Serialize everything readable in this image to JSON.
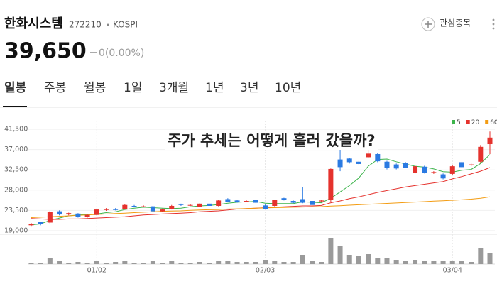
{
  "header": {
    "name": "한화시스템",
    "code": "272210",
    "market": "KOSPI",
    "watch": "관심종목",
    "price": "39,650",
    "change": "0(0.00%)"
  },
  "tabs": [
    "일봉",
    "주봉",
    "월봉",
    "1일",
    "3개월",
    "1년",
    "3년",
    "10년"
  ],
  "chart_data": {
    "type": "candlestick",
    "annotation": "주가 추세는 어떻게 흘러 갔을까?",
    "categories": [
      null,
      null,
      null,
      null,
      null,
      null,
      null,
      "01/02",
      null,
      null,
      null,
      null,
      null,
      null,
      null,
      null,
      null,
      null,
      null,
      null,
      null,
      null,
      null,
      null,
      null,
      "02/03",
      null,
      null,
      null,
      null,
      null,
      null,
      null,
      null,
      null,
      null,
      null,
      null,
      null,
      null,
      null,
      null,
      null,
      null,
      null,
      "03/04",
      null,
      null,
      null,
      null
    ],
    "open": [
      20200,
      20900,
      20800,
      23300,
      22600,
      22800,
      22000,
      22500,
      23600,
      23800,
      23800,
      24500,
      24300,
      24400,
      23300,
      23800,
      24900,
      24600,
      24300,
      25000,
      24500,
      26000,
      25700,
      25400,
      25800,
      24600,
      24500,
      26200,
      25600,
      26000,
      25600,
      25500,
      25800,
      34800,
      35000,
      34300,
      35300,
      36000,
      34300,
      33700,
      34100,
      31800,
      33200,
      31800,
      31500,
      31600,
      34200,
      33500,
      34300,
      38200
    ],
    "high": [
      20700,
      21000,
      23400,
      23500,
      23000,
      22900,
      22700,
      23900,
      24000,
      24000,
      24900,
      24700,
      24600,
      24500,
      23900,
      24700,
      25000,
      24900,
      25100,
      25100,
      25900,
      26200,
      25800,
      25700,
      25900,
      24800,
      25900,
      26300,
      25700,
      28600,
      25700,
      25800,
      32800,
      37000,
      35200,
      34500,
      36900,
      36200,
      34500,
      33900,
      34200,
      33500,
      33400,
      32200,
      31700,
      33500,
      34300,
      33900,
      38000,
      41000
    ],
    "low": [
      19900,
      20200,
      20600,
      22400,
      22400,
      21900,
      21900,
      22400,
      23400,
      23500,
      23700,
      24200,
      24200,
      23200,
      23200,
      23700,
      24500,
      24500,
      24200,
      24400,
      24400,
      25300,
      25200,
      25300,
      25100,
      23700,
      24400,
      25700,
      25100,
      25100,
      24600,
      25400,
      25400,
      32200,
      33900,
      33600,
      35100,
      34200,
      32600,
      32600,
      32900,
      31600,
      31700,
      31600,
      30400,
      31400,
      32900,
      33300,
      34100,
      36000
    ],
    "close": [
      20500,
      20500,
      23200,
      22600,
      22900,
      22000,
      22500,
      23700,
      23800,
      23600,
      24700,
      24300,
      24400,
      23300,
      23700,
      24500,
      24700,
      24700,
      25000,
      24500,
      25700,
      25400,
      25300,
      25600,
      25200,
      23800,
      25800,
      25800,
      25200,
      25200,
      24700,
      25700,
      32700,
      33100,
      34200,
      33800,
      36100,
      34400,
      32900,
      32800,
      33000,
      33300,
      31900,
      32000,
      30600,
      33300,
      33100,
      33700,
      37600,
      39650
    ],
    "up_color": "#e5322d",
    "down_color": "#2a7ae2",
    "series": [
      {
        "name": "5",
        "color": "#3cb44b",
        "values": [
          20300,
          20500,
          21300,
          21800,
          22300,
          22500,
          22600,
          22700,
          23000,
          23200,
          23700,
          24000,
          24200,
          24100,
          24000,
          23900,
          24000,
          24300,
          24500,
          24600,
          24800,
          25100,
          25300,
          25400,
          25500,
          25100,
          25000,
          25000,
          25000,
          25400,
          25300,
          25200,
          26200,
          27600,
          29000,
          30700,
          33300,
          34800,
          34900,
          34300,
          33800,
          33300,
          33100,
          32700,
          32100,
          32000,
          32400,
          32600,
          33900,
          35900
        ]
      },
      {
        "name": "20",
        "color": "#e5322d",
        "values": [
          21700,
          21600,
          21500,
          21500,
          21600,
          21600,
          21700,
          21800,
          21900,
          22000,
          22100,
          22300,
          22500,
          22600,
          22700,
          22800,
          22900,
          23000,
          23200,
          23300,
          23400,
          23600,
          23800,
          23900,
          24000,
          24100,
          24200,
          24300,
          24400,
          24500,
          24500,
          24600,
          25200,
          25600,
          26100,
          26500,
          27000,
          27500,
          27900,
          28300,
          28700,
          29000,
          29300,
          29600,
          29900,
          30500,
          31000,
          31600,
          32200,
          33000
        ]
      },
      {
        "name": "60",
        "color": "#f39c12",
        "values": [
          21900,
          22000,
          22100,
          22200,
          22300,
          22400,
          22500,
          22600,
          22700,
          22800,
          22900,
          23000,
          23100,
          23200,
          23300,
          23350,
          23400,
          23500,
          23600,
          23650,
          23700,
          23800,
          23850,
          23900,
          24000,
          24050,
          24100,
          24150,
          24200,
          24250,
          24300,
          24350,
          24450,
          24550,
          24650,
          24750,
          24850,
          24950,
          25050,
          25150,
          25250,
          25350,
          25450,
          25550,
          25650,
          25750,
          25850,
          26000,
          26200,
          26500
        ]
      }
    ],
    "volume": [
      200000,
      200000,
      800000,
      400000,
      200000,
      300000,
      200000,
      400000,
      200000,
      300000,
      400000,
      200000,
      200000,
      400000,
      200000,
      400000,
      200000,
      200000,
      300000,
      200000,
      500000,
      400000,
      300000,
      300000,
      300000,
      600000,
      500000,
      300000,
      300000,
      1300000,
      500000,
      300000,
      3700000,
      2600000,
      1300000,
      1100000,
      1400000,
      800000,
      900000,
      600000,
      500000,
      600000,
      500000,
      400000,
      500000,
      500000,
      400000,
      300000,
      2300000,
      1500000
    ],
    "volume_color": "#9a9a9a",
    "volume_ylim": [
      0,
      3900000
    ],
    "ylim": [
      18200,
      43400
    ],
    "yticks": [
      {
        "value": 41500,
        "label": "41,500"
      },
      {
        "value": 37000,
        "label": "37,000"
      },
      {
        "value": 32500,
        "label": "32,500"
      },
      {
        "value": 28000,
        "label": "28,000"
      },
      {
        "value": 23500,
        "label": "23,500"
      },
      {
        "value": 19000,
        "label": "19,000"
      }
    ],
    "grid": true
  }
}
